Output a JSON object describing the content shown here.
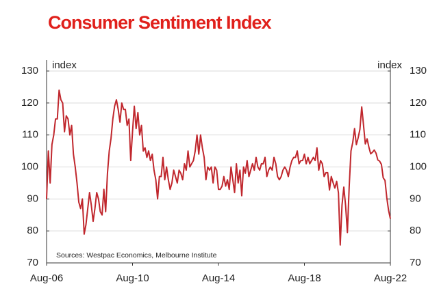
{
  "chart_data": {
    "type": "line",
    "title": "Consumer Sentiment Index",
    "ylabel": "index",
    "y2label": "index",
    "source": "Sources: Westpac Economics, Melbourne Institute",
    "categories": [
      "Aug-06",
      null,
      null,
      null,
      null,
      null,
      null,
      null,
      null,
      null,
      null,
      null,
      null,
      null,
      null,
      null,
      null,
      null,
      null,
      null,
      null,
      null,
      null,
      null,
      null,
      null,
      null,
      null,
      null,
      null,
      null,
      null,
      null,
      null,
      null,
      null,
      null,
      null,
      null,
      null,
      null,
      null,
      null,
      null,
      null,
      null,
      null,
      null,
      "Aug-10",
      null,
      null,
      null,
      null,
      null,
      null,
      null,
      null,
      null,
      null,
      null,
      null,
      null,
      null,
      null,
      null,
      null,
      null,
      null,
      null,
      null,
      null,
      null,
      null,
      null,
      null,
      null,
      null,
      null,
      null,
      null,
      null,
      null,
      null,
      null,
      null,
      null,
      null,
      null,
      null,
      null,
      null,
      null,
      null,
      null,
      null,
      null,
      "Aug-14",
      null,
      null,
      null,
      null,
      null,
      null,
      null,
      null,
      null,
      null,
      null,
      null,
      null,
      null,
      null,
      null,
      null,
      null,
      null,
      null,
      null,
      null,
      null,
      null,
      null,
      null,
      null,
      null,
      null,
      null,
      null,
      null,
      null,
      null,
      null,
      null,
      null,
      null,
      null,
      null,
      null,
      null,
      null,
      null,
      null,
      null,
      null,
      "Aug-18",
      null,
      null,
      null,
      null,
      null,
      null,
      null,
      null,
      null,
      null,
      null,
      null,
      null,
      null,
      null,
      null,
      null,
      null,
      null,
      null,
      null,
      null,
      null,
      null,
      null,
      null,
      null,
      null,
      null,
      null,
      null,
      null,
      null,
      null,
      null,
      null,
      null,
      null,
      null,
      null,
      null,
      null,
      null,
      null,
      null,
      null,
      null,
      "Aug-22"
    ],
    "series": [
      {
        "name": "Consumer Sentiment Index",
        "color": "#c0272d",
        "values": [
          90,
          105,
          95,
          107,
          110,
          115,
          115,
          124,
          121,
          120,
          111,
          116,
          115,
          110,
          113,
          104,
          100,
          95,
          89,
          87,
          90,
          79,
          82,
          87,
          92,
          88,
          83,
          87,
          92,
          90,
          86,
          85,
          93,
          86,
          98,
          105,
          109,
          115,
          119,
          121,
          118,
          114,
          120,
          118,
          118,
          113,
          115,
          102,
          111,
          119,
          112,
          117,
          110,
          113,
          105,
          106,
          103,
          105,
          102,
          104,
          99,
          96,
          90,
          97,
          97,
          103,
          96,
          100,
          96,
          93,
          95,
          99,
          97,
          95,
          99,
          98,
          96,
          101,
          99,
          105,
          100,
          101,
          102,
          105,
          110,
          104,
          110,
          106,
          103,
          96,
          100,
          99,
          100,
          95,
          100,
          99,
          93,
          93,
          94,
          97,
          94,
          96,
          93,
          100,
          96,
          92,
          101,
          95,
          99,
          91,
          100,
          98,
          102,
          97,
          99,
          101,
          99,
          103,
          100,
          99,
          101,
          101,
          103,
          97,
          99,
          100,
          99,
          103,
          101,
          97,
          96,
          97,
          99,
          100,
          99,
          97,
          100,
          102,
          103,
          103,
          105,
          101,
          102,
          102,
          104,
          101,
          103,
          101,
          102,
          103,
          102,
          106,
          99,
          102,
          101,
          97,
          98.2,
          98.2,
          92.8,
          97,
          95.1,
          93.4,
          95.5,
          91.9,
          75.6,
          88.1,
          93.7,
          87.9,
          79.5,
          93.8,
          105,
          107.7,
          112,
          107,
          109.1,
          111.8,
          118.8,
          113.1,
          107.2,
          108.8,
          106.2,
          104.1,
          104.6,
          105.3,
          104.3,
          102.2,
          101.8,
          100.8,
          96.6,
          95.8,
          90.4,
          86.4,
          83.8
        ]
      }
    ],
    "ylim": [
      70,
      130
    ],
    "yticks": [
      70,
      80,
      90,
      100,
      110,
      120,
      130
    ],
    "y2lim": [
      70,
      130
    ],
    "y2ticks": [
      70,
      80,
      90,
      100,
      110,
      120,
      130
    ],
    "grid": true
  }
}
